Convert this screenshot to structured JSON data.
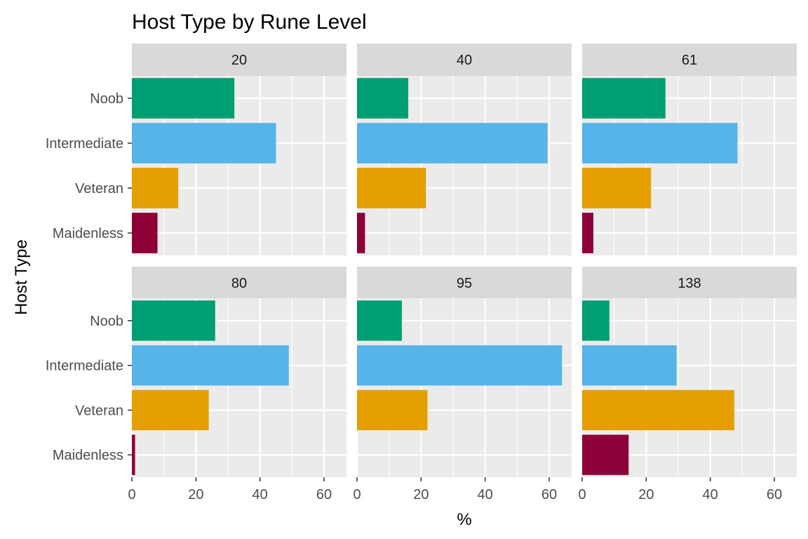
{
  "chart_data": {
    "type": "bar",
    "orientation": "horizontal",
    "title": "Host Type by Rune Level",
    "xlabel": "%",
    "ylabel": "Host Type",
    "categories": [
      "Noob",
      "Intermediate",
      "Veteran",
      "Maidenless"
    ],
    "category_colors": {
      "Noob": "#009E73",
      "Intermediate": "#56B4E9",
      "Veteran": "#E69F00",
      "Maidenless": "#8E0038"
    },
    "xlim": [
      0,
      67
    ],
    "x_ticks": [
      "0",
      "20",
      "40",
      "60"
    ],
    "grid": true,
    "facets": [
      {
        "label": "20",
        "values": [
          32,
          45,
          14.5,
          8
        ]
      },
      {
        "label": "40",
        "values": [
          16,
          59.5,
          21.5,
          2.5
        ]
      },
      {
        "label": "61",
        "values": [
          26,
          48.5,
          21.5,
          3.5
        ]
      },
      {
        "label": "80",
        "values": [
          26,
          49,
          24,
          1
        ]
      },
      {
        "label": "95",
        "values": [
          14,
          64,
          22,
          0
        ]
      },
      {
        "label": "138",
        "values": [
          8.5,
          29.5,
          47.5,
          14.5
        ]
      }
    ]
  },
  "colors": {
    "panel_bg": "#EBEBEB",
    "strip_bg": "#D9D9D9",
    "grid_major": "#FFFFFF",
    "tick": "#333333"
  }
}
